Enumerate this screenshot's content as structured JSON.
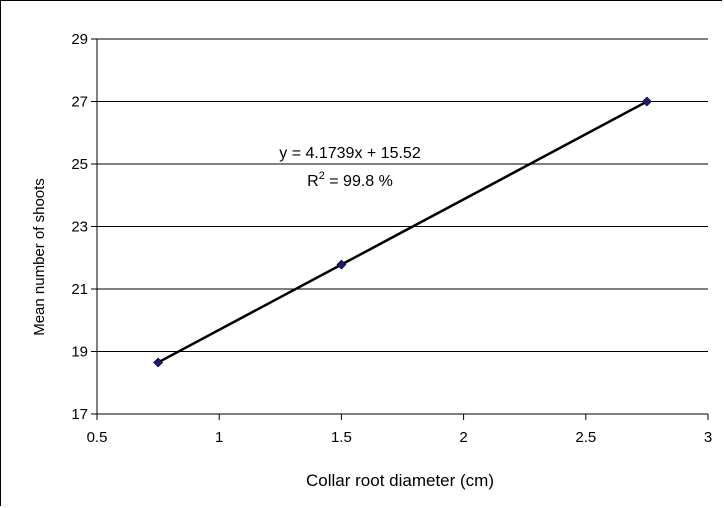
{
  "chart_data": {
    "type": "scatter",
    "title": "",
    "xlabel": "Collar root diameter (cm)",
    "ylabel": "Mean number of shoots",
    "xlim": [
      0.5,
      3
    ],
    "ylim": [
      17,
      29
    ],
    "xticks": [
      0.5,
      1,
      1.5,
      2,
      2.5,
      3
    ],
    "yticks": [
      17,
      19,
      21,
      23,
      25,
      27,
      29
    ],
    "x_tick_labels": [
      "0.5",
      "1",
      "1.5",
      "2",
      "2.5",
      "3"
    ],
    "y_tick_labels": [
      "17",
      "19",
      "21",
      "23",
      "25",
      "27",
      "29"
    ],
    "grid": "horizontal",
    "legend": "none",
    "marker_color": "#1a1a7a",
    "line_color": "#000000",
    "series": [
      {
        "x": [
          0.75,
          1.5,
          2.75
        ],
        "y": [
          18.65,
          21.78,
          27.0
        ]
      }
    ],
    "trendline": {
      "slope": 4.1739,
      "intercept": 15.52
    },
    "annotations": {
      "equation": "y = 4.1739x + 15.52",
      "r2_prefix": "R",
      "r2_superscript": "2",
      "r2_suffix": " = 99.8 %"
    }
  }
}
